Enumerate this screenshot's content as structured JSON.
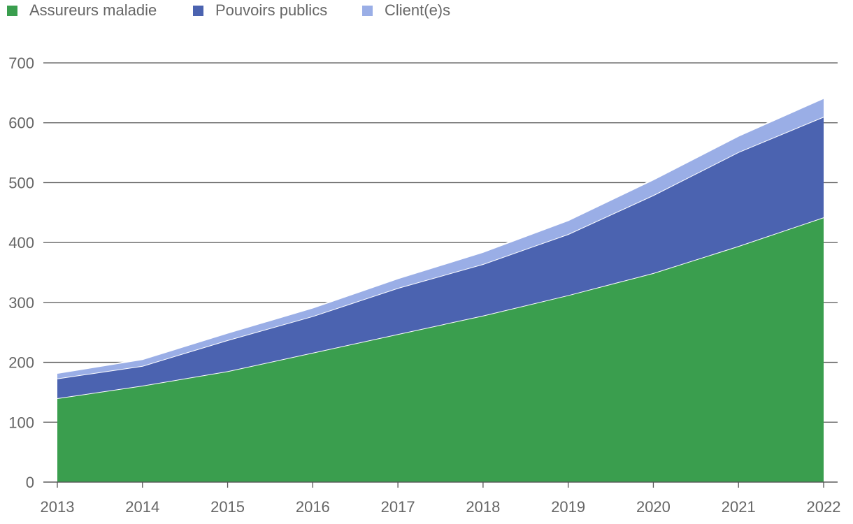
{
  "chart_data": {
    "type": "area",
    "stacked": true,
    "title": "",
    "xlabel": "",
    "ylabel": "",
    "x": [
      "2013",
      "2014",
      "2015",
      "2016",
      "2017",
      "2018",
      "2019",
      "2020",
      "2021",
      "2022"
    ],
    "ylim": [
      0,
      700
    ],
    "yticks": [
      0,
      100,
      200,
      300,
      400,
      500,
      600,
      700
    ],
    "grid": true,
    "legend_position": "top-left",
    "series": [
      {
        "name": "Assureurs maladie",
        "color": "#3a9e4e",
        "values": [
          140,
          161,
          185,
          216,
          247,
          278,
          312,
          349,
          394,
          442
        ]
      },
      {
        "name": "Pouvoirs publics",
        "color": "#4b63b0",
        "values": [
          33,
          33,
          52,
          61,
          77,
          86,
          102,
          130,
          157,
          168
        ]
      },
      {
        "name": "Client(e)s",
        "color": "#9aaee6",
        "values": [
          9,
          11,
          12,
          14,
          16,
          20,
          23,
          26,
          27,
          31
        ]
      }
    ]
  }
}
